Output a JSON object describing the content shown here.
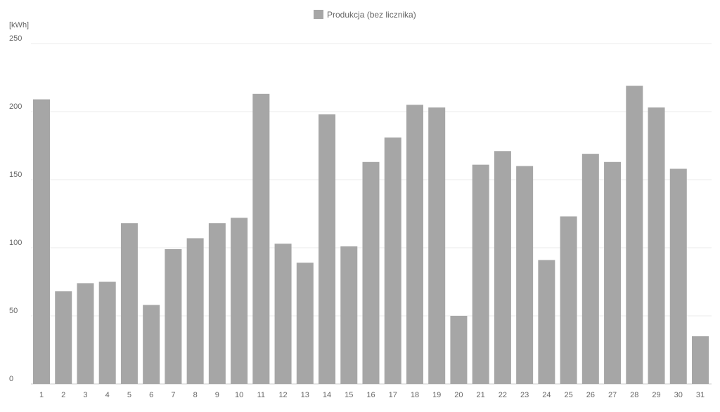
{
  "chart_data": {
    "type": "bar",
    "ylabel": "[kWh]",
    "ylim": [
      0,
      250
    ],
    "yticks": [
      "0",
      "50",
      "100",
      "150",
      "200",
      "250"
    ],
    "grid": true,
    "legend_position": "top-center",
    "categories": [
      "1",
      "2",
      "3",
      "4",
      "5",
      "6",
      "7",
      "8",
      "9",
      "10",
      "11",
      "12",
      "13",
      "14",
      "15",
      "16",
      "17",
      "18",
      "19",
      "20",
      "21",
      "22",
      "23",
      "24",
      "25",
      "26",
      "27",
      "28",
      "29",
      "30",
      "31"
    ],
    "series": [
      {
        "name": "Produkcja (bez licznika)",
        "color": "#a6a6a6",
        "values": [
          209,
          68,
          74,
          75,
          118,
          58,
          99,
          107,
          118,
          122,
          213,
          103,
          89,
          198,
          101,
          163,
          181,
          205,
          203,
          50,
          161,
          171,
          160,
          91,
          123,
          169,
          163,
          219,
          203,
          158,
          35
        ]
      }
    ]
  }
}
